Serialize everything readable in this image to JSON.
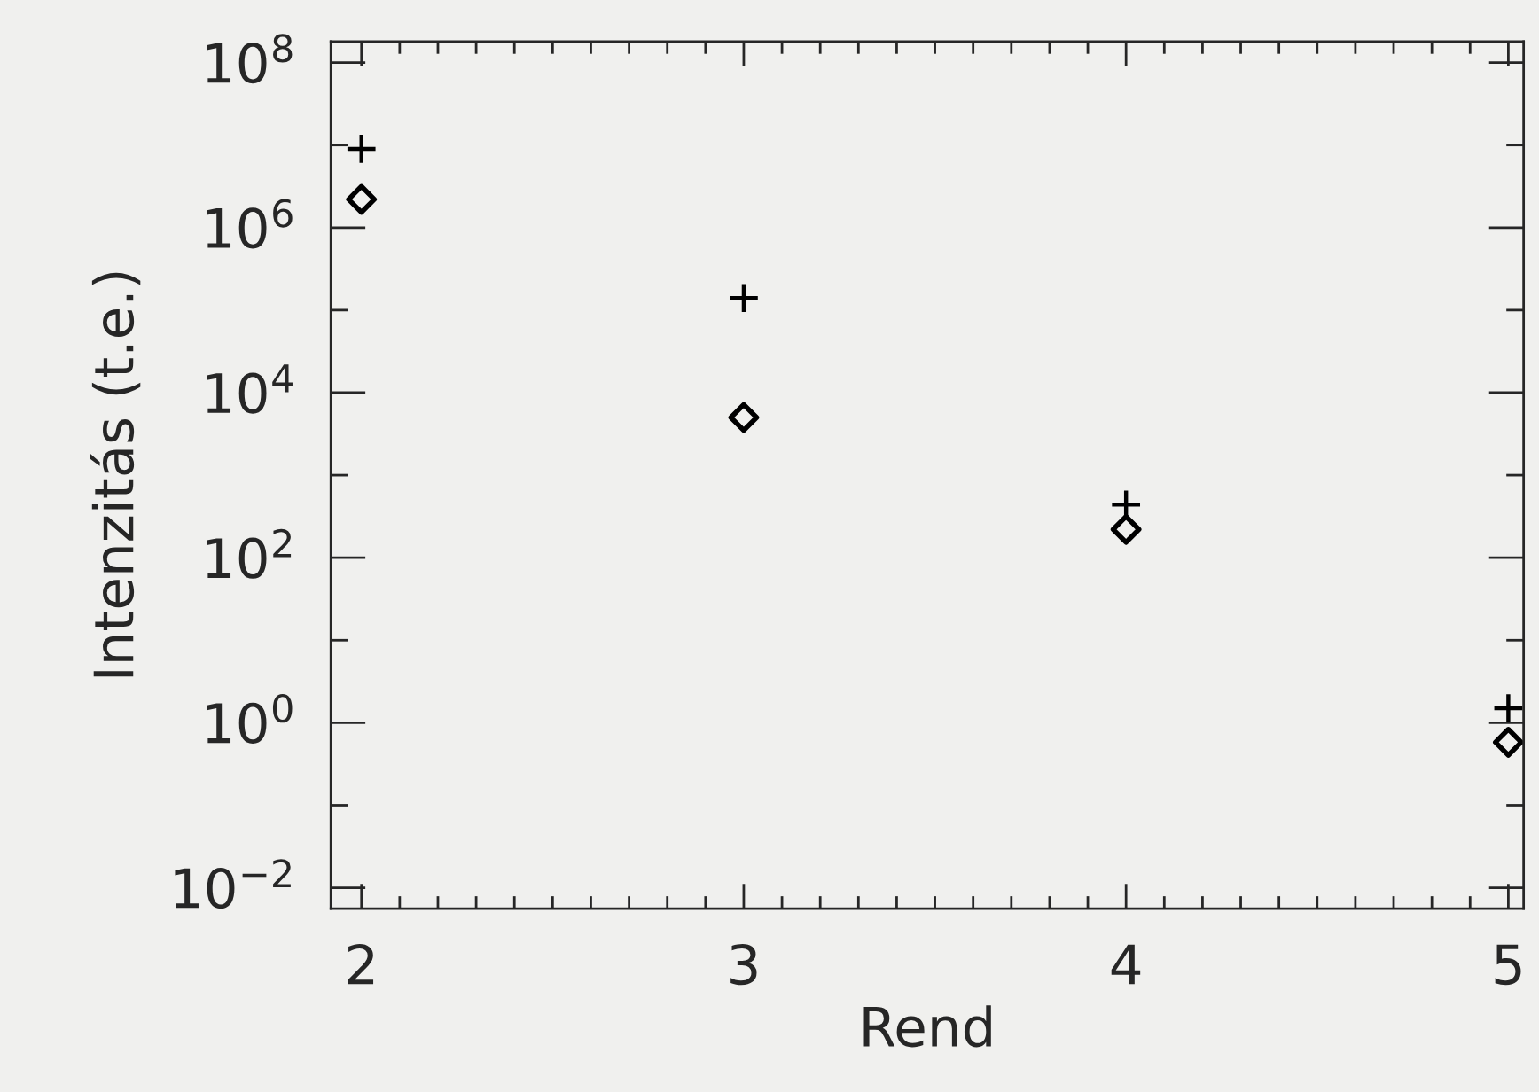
{
  "chart_data": {
    "type": "scatter",
    "xlabel": "Rend",
    "ylabel": "Intenzitás (t.e.)",
    "x": [
      2,
      3,
      4,
      5
    ],
    "series": [
      {
        "color": "#000000",
        "marker": "cross",
        "values": [
          9000000,
          140000,
          440,
          1.5
        ]
      },
      {
        "color": "#000000",
        "marker": "diamond",
        "values": [
          2200000,
          5000,
          220,
          0.58
        ]
      }
    ],
    "log": "y",
    "xlim": [
      1.92,
      5.04
    ],
    "ylim": [
      0.0056,
      180000000
    ],
    "xticks": [
      2,
      {
        "value": 2.1,
        "label": null
      },
      {
        "value": 2.2,
        "label": null
      },
      {
        "value": 2.3,
        "label": null
      },
      {
        "value": 2.4,
        "label": null
      },
      {
        "value": 2.5,
        "label": null
      },
      {
        "value": 2.6,
        "label": null
      },
      {
        "value": 2.7,
        "label": null
      },
      {
        "value": 2.8,
        "label": null
      },
      {
        "value": 2.9,
        "label": null
      },
      3,
      {
        "value": 3.1,
        "label": null
      },
      {
        "value": 3.2,
        "label": null
      },
      {
        "value": 3.3,
        "label": null
      },
      {
        "value": 3.4,
        "label": null
      },
      {
        "value": 3.5,
        "label": null
      },
      {
        "value": 3.6,
        "label": null
      },
      {
        "value": 3.7,
        "label": null
      },
      {
        "value": 3.8,
        "label": null
      },
      {
        "value": 3.9,
        "label": null
      },
      4,
      {
        "value": 4.1,
        "label": null
      },
      {
        "value": 4.2,
        "label": null
      },
      {
        "value": 4.3,
        "label": null
      },
      {
        "value": 4.4,
        "label": null
      },
      {
        "value": 4.5,
        "label": null
      },
      {
        "value": 4.6,
        "label": null
      },
      {
        "value": 4.7,
        "label": null
      },
      {
        "value": 4.8,
        "label": null
      },
      {
        "value": 4.9,
        "label": null
      },
      5
    ],
    "yticks": [
      {
        "value": 0.01,
        "label": "10$^{−2}$"
      },
      {
        "value": 0.1,
        "label": null
      },
      {
        "value": 1,
        "label": "10$^{0}$"
      },
      {
        "value": 10,
        "label": null
      },
      {
        "value": 100,
        "label": "10$^{2}$"
      },
      {
        "value": 1000,
        "label": null
      },
      {
        "value": 10000,
        "label": "10$^{4}$"
      },
      {
        "value": 100000,
        "label": null
      },
      {
        "value": 1000000,
        "label": "10$^{6}$"
      },
      {
        "value": 10000000,
        "label": null
      },
      {
        "value": 100000000,
        "label": "10$^{8}$"
      }
    ],
    "grid": false,
    "legend": false
  }
}
